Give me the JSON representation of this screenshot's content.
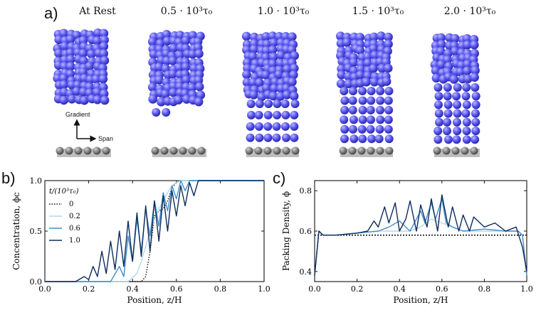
{
  "panel_a": {
    "letter": "a)",
    "time_labels": [
      "At Rest",
      "0.5 · 10³τ₀",
      "1.0 · 10³τ₀",
      "1.5 · 10³τ₀",
      "2.0 · 10³τ₀"
    ],
    "gradient_label": "Gradient",
    "span_label": "Span",
    "sphere_color": "#5a57f0"
  },
  "panel_b": {
    "letter": "b)"
  },
  "panel_c": {
    "letter": "c)"
  },
  "chart_data": [
    {
      "type": "line",
      "ylabel": "Concentration, ϕc",
      "xlabel": "Position, z/H",
      "xlim": [
        0.0,
        1.0
      ],
      "ylim": [
        0.0,
        1.0
      ],
      "xticks": [
        "0.0",
        "0.2",
        "0.4",
        "0.6",
        "0.8",
        "1.0"
      ],
      "yticks": [
        "0.0",
        "0.5",
        "1.0"
      ],
      "legend_title": "t/(10³τ₀)",
      "legend_position": "upper-left",
      "series": [
        {
          "name": "0",
          "color": "#111111",
          "style": "dotted",
          "x": [
            0.0,
            0.44,
            0.46,
            0.48,
            0.5,
            0.52,
            0.54,
            0.56,
            0.58,
            0.6,
            0.62,
            1.0
          ],
          "y": [
            0.0,
            0.0,
            0.05,
            0.3,
            0.65,
            0.7,
            0.72,
            0.8,
            0.93,
            0.98,
            1.0,
            1.0
          ]
        },
        {
          "name": "0.2",
          "color": "#b6d7ea",
          "style": "solid",
          "x": [
            0.0,
            0.38,
            0.42,
            0.44,
            0.46,
            0.48,
            0.5,
            0.52,
            0.54,
            0.56,
            0.58,
            0.6,
            0.62,
            0.64,
            1.0
          ],
          "y": [
            0.0,
            0.0,
            0.08,
            0.2,
            0.35,
            0.5,
            0.62,
            0.72,
            0.8,
            0.88,
            0.95,
            0.98,
            1.0,
            1.0,
            1.0
          ]
        },
        {
          "name": "0.6",
          "color": "#3d8fc9",
          "style": "solid",
          "x": [
            0.0,
            0.3,
            0.34,
            0.36,
            0.38,
            0.4,
            0.42,
            0.44,
            0.46,
            0.48,
            0.5,
            0.52,
            0.54,
            0.56,
            0.58,
            0.6,
            0.62,
            0.64,
            0.66,
            1.0
          ],
          "y": [
            0.0,
            0.0,
            0.15,
            0.05,
            0.45,
            0.2,
            0.62,
            0.3,
            0.72,
            0.45,
            0.8,
            0.55,
            0.88,
            0.7,
            0.95,
            0.82,
            1.0,
            0.9,
            1.0,
            1.0
          ]
        },
        {
          "name": "1.0",
          "color": "#0d2b5c",
          "style": "solid",
          "x": [
            0.0,
            0.14,
            0.18,
            0.2,
            0.22,
            0.24,
            0.26,
            0.28,
            0.3,
            0.32,
            0.34,
            0.36,
            0.38,
            0.4,
            0.42,
            0.44,
            0.46,
            0.48,
            0.5,
            0.52,
            0.54,
            0.56,
            0.58,
            0.6,
            0.62,
            0.64,
            0.66,
            0.68,
            0.7,
            0.72,
            1.0
          ],
          "y": [
            0.0,
            0.0,
            0.05,
            0.02,
            0.15,
            0.05,
            0.3,
            0.08,
            0.4,
            0.12,
            0.5,
            0.15,
            0.6,
            0.2,
            0.68,
            0.25,
            0.75,
            0.3,
            0.8,
            0.4,
            0.85,
            0.5,
            0.9,
            0.65,
            0.95,
            0.75,
            0.98,
            0.85,
            1.0,
            1.0,
            1.0
          ]
        }
      ]
    },
    {
      "type": "line",
      "ylabel": "Packing Density, ϕ",
      "xlabel": "Position, z/H",
      "xlim": [
        0.0,
        1.0
      ],
      "ylim": [
        0.35,
        0.85
      ],
      "xticks": [
        "0.0",
        "0.2",
        "0.4",
        "0.6",
        "0.8",
        "1.0"
      ],
      "yticks": [
        "0.4",
        "0.6",
        "0.8"
      ],
      "hline": 0.58,
      "series": [
        {
          "name": "0.2",
          "color": "#b6d7ea",
          "x": [
            0.0,
            0.02,
            0.04,
            0.1,
            0.2,
            0.3,
            0.4,
            0.45,
            0.5,
            0.55,
            0.6,
            0.65,
            0.7,
            0.8,
            0.9,
            0.96,
            0.98,
            1.0
          ],
          "y": [
            0.38,
            0.6,
            0.58,
            0.58,
            0.59,
            0.6,
            0.6,
            0.6,
            0.62,
            0.66,
            0.64,
            0.62,
            0.6,
            0.6,
            0.6,
            0.6,
            0.58,
            0.38
          ]
        },
        {
          "name": "0.6",
          "color": "#3d8fc9",
          "x": [
            0.0,
            0.02,
            0.04,
            0.1,
            0.2,
            0.3,
            0.35,
            0.4,
            0.45,
            0.5,
            0.52,
            0.55,
            0.57,
            0.6,
            0.62,
            0.65,
            0.7,
            0.8,
            0.9,
            0.96,
            0.98,
            1.0
          ],
          "y": [
            0.38,
            0.6,
            0.58,
            0.58,
            0.59,
            0.6,
            0.62,
            0.65,
            0.6,
            0.7,
            0.64,
            0.74,
            0.66,
            0.76,
            0.64,
            0.62,
            0.6,
            0.61,
            0.6,
            0.6,
            0.58,
            0.38
          ]
        },
        {
          "name": "1.0",
          "color": "#0d2b5c",
          "x": [
            0.0,
            0.02,
            0.04,
            0.1,
            0.2,
            0.25,
            0.28,
            0.3,
            0.33,
            0.35,
            0.38,
            0.4,
            0.43,
            0.45,
            0.48,
            0.5,
            0.53,
            0.55,
            0.58,
            0.6,
            0.63,
            0.65,
            0.68,
            0.7,
            0.73,
            0.75,
            0.8,
            0.85,
            0.9,
            0.95,
            0.98,
            1.0
          ],
          "y": [
            0.38,
            0.6,
            0.58,
            0.58,
            0.59,
            0.6,
            0.65,
            0.62,
            0.72,
            0.64,
            0.74,
            0.6,
            0.66,
            0.75,
            0.6,
            0.73,
            0.62,
            0.76,
            0.6,
            0.78,
            0.62,
            0.72,
            0.6,
            0.68,
            0.6,
            0.67,
            0.62,
            0.64,
            0.6,
            0.62,
            0.52,
            0.4
          ]
        }
      ]
    }
  ]
}
